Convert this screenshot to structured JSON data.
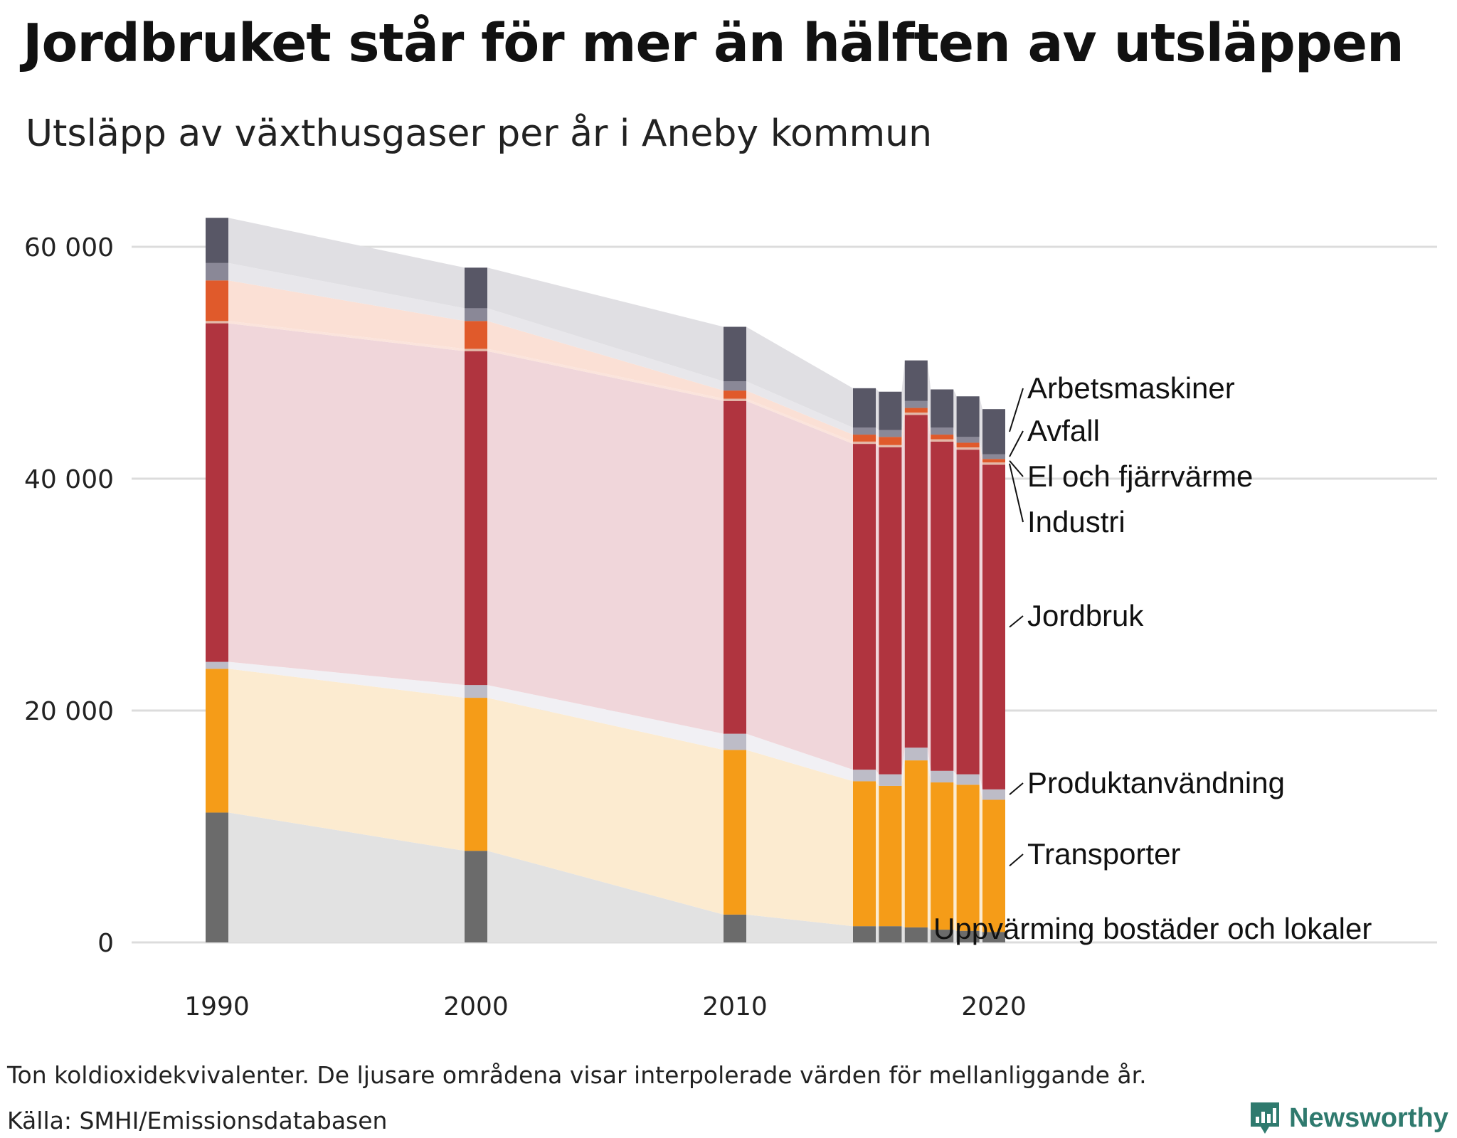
{
  "title": "Jordbruket står för mer än hälften av utsläppen",
  "subtitle": "Utsläpp av växthusgaser per år i Aneby kommun",
  "footnote": "Ton koldioxidekvivalenter. De ljusare områdena visar interpolerade värden för mellanliggande år.",
  "source": "Källa: SMHI/Emissionsdatabasen",
  "brand": {
    "name": "Newsworthy",
    "icon": "newsworthy-logo-icon",
    "color": "#2f7a6e"
  },
  "chart_data": {
    "type": "bar",
    "stacked": true,
    "title": "Utsläpp av växthusgaser per år i Aneby kommun",
    "ylabel": "Ton koldioxidekvivalenter",
    "ylim": [
      0,
      63000
    ],
    "yticks": [
      0,
      20000,
      40000,
      60000
    ],
    "ytick_labels": [
      "0",
      "20 000",
      "40 000",
      "60 000"
    ],
    "xlim": [
      1985,
      2023
    ],
    "xticks": [
      1990,
      2000,
      2010,
      2020
    ],
    "xtick_labels": [
      "1990",
      "2000",
      "2010",
      "2020"
    ],
    "grid": true,
    "years": [
      1990,
      2000,
      2010,
      2015,
      2016,
      2017,
      2018,
      2019,
      2020
    ],
    "series": [
      {
        "name": "Uppvärming bostäder och lokaler",
        "color": "#6b6b6b",
        "light": "#e2e2e2",
        "values": [
          11200,
          7900,
          2400,
          1400,
          1400,
          1300,
          1100,
          1000,
          900
        ]
      },
      {
        "name": "Transporter",
        "color": "#f59c18",
        "light": "#fcebd0",
        "values": [
          12400,
          13200,
          14200,
          12500,
          12100,
          14400,
          12700,
          12600,
          11400
        ]
      },
      {
        "name": "Produktanvändning",
        "color": "#bdbcc7",
        "light": "#f1f0f4",
        "values": [
          600,
          1100,
          1400,
          1000,
          1000,
          1100,
          1000,
          900,
          900
        ]
      },
      {
        "name": "Jordbruk",
        "color": "#b0343f",
        "light": "#f0d6da",
        "values": [
          29200,
          28800,
          28700,
          28100,
          28200,
          28700,
          28400,
          28000,
          28000
        ]
      },
      {
        "name": "Industri",
        "color": "#e3b8a8",
        "light": "#fbe4dc",
        "values": [
          200,
          200,
          200,
          200,
          200,
          200,
          200,
          200,
          200
        ]
      },
      {
        "name": "El och fjärrvärme",
        "color": "#e05a2b",
        "light": "#fbe0d5",
        "values": [
          3500,
          2400,
          700,
          600,
          700,
          400,
          400,
          400,
          300
        ]
      },
      {
        "name": "Avfall",
        "color": "#8a8897",
        "light": "#e8e7eb",
        "values": [
          1500,
          1100,
          800,
          600,
          600,
          600,
          600,
          500,
          400
        ]
      },
      {
        "name": "Arbetsmaskiner",
        "color": "#585766",
        "light": "#e0dfe3",
        "values": [
          3900,
          3500,
          4700,
          3400,
          3300,
          3500,
          3300,
          3500,
          3900
        ]
      }
    ]
  }
}
